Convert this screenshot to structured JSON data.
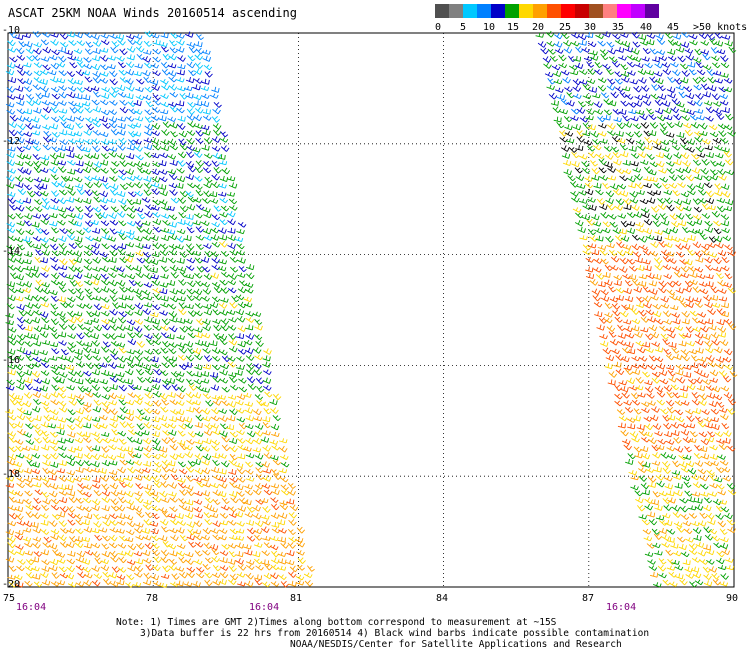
{
  "title": "ASCAT 25KM NOAA Winds 20160514 ascending",
  "legend": {
    "colors": [
      "#505050",
      "#808080",
      "#00c8ff",
      "#0080ff",
      "#0000c8",
      "#00a000",
      "#ffd800",
      "#ffa000",
      "#ff5000",
      "#ff0000",
      "#c80000",
      "#a05020",
      "#ff8080",
      "#ff00ff",
      "#c000ff",
      "#6000a0"
    ],
    "labels": [
      "0",
      "5",
      "10",
      "15",
      "20",
      "25",
      "30",
      "35",
      "40",
      "45",
      ">50 knots"
    ],
    "unit": "knots"
  },
  "axes": {
    "lat_labels": [
      "-10",
      "-12",
      "-14",
      "-16",
      "-18",
      "-20"
    ],
    "lon_labels": [
      "75",
      "78",
      "81",
      "84",
      "87",
      "90"
    ]
  },
  "times": [
    "16:04",
    "16:04",
    "16:04"
  ],
  "notes": {
    "line1": "Note: 1) Times are GMT 2)Times along bottom correspond to measurement at ~15S",
    "line2": "3)Data buffer is 22 hrs from 20160514 4) Black wind barbs indicate possible contamination",
    "line3": "NOAA/NESDIS/Center for Satellite Applications and Research"
  },
  "swaths": [
    {
      "name": "west",
      "lon_range": [
        75,
        81
      ],
      "lat_range": [
        -10,
        -20
      ]
    },
    {
      "name": "east",
      "lon_range": [
        86.5,
        90
      ],
      "lat_range": [
        -10,
        -20
      ]
    }
  ]
}
